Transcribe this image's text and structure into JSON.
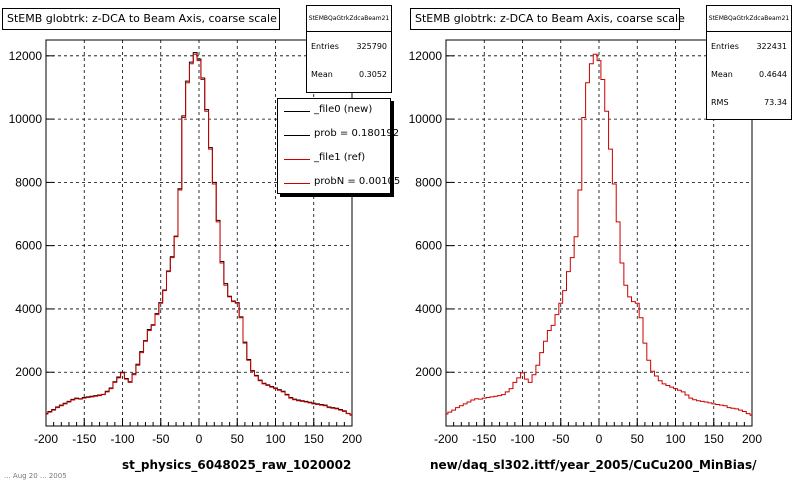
{
  "panels": [
    {
      "title": "StEMB globtrk: z-DCA to Beam Axis, coarse scale",
      "stats": {
        "name": "StEMBQaGtrkZdcaBeam21",
        "rows": [
          {
            "label": "Entries",
            "value": "325790"
          },
          {
            "label": "Mean",
            "value": "0.3052"
          }
        ]
      },
      "legend": [
        {
          "label": "_file0 (new)",
          "color": "#000000"
        },
        {
          "label": "prob = 0.180192",
          "color": "#000000"
        },
        {
          "label": "_file1 (ref)",
          "color": "#cc0000"
        },
        {
          "label": "probN = 0.00105",
          "color": "#cc0000"
        }
      ],
      "footer": "st_physics_6048025_raw_1020002"
    },
    {
      "title": "StEMB globtrk: z-DCA to Beam Axis, coarse scale",
      "stats": {
        "name": "StEMBQaGtrkZdcaBeam21",
        "rows": [
          {
            "label": "Entries",
            "value": "322431"
          },
          {
            "label": "Mean",
            "value": "0.4644"
          },
          {
            "label": "RMS",
            "value": "73.34"
          }
        ]
      },
      "footer": "new/daq_sl302.ittf/year_2005/CuCu200_MinBias/"
    }
  ],
  "cut_text": "... Aug 20 ... 2005",
  "chart_data": [
    {
      "type": "line",
      "style": "histogram-step",
      "title": "StEMB globtrk: z-DCA to Beam Axis, coarse scale",
      "xlabel": "st_physics_6048025_raw_1020002",
      "ylabel": "",
      "xlim": [
        -200,
        200
      ],
      "ylim": [
        300,
        12500
      ],
      "xticks": [
        -200,
        -150,
        -100,
        -50,
        0,
        50,
        100,
        150,
        200
      ],
      "yticks": [
        2000,
        4000,
        6000,
        8000,
        10000,
        12000
      ],
      "grid": true,
      "legend_position": "top-right",
      "series": [
        {
          "name": "_file0 (new)",
          "color": "#000000",
          "x": [
            -200,
            -195,
            -190,
            -185,
            -180,
            -175,
            -170,
            -165,
            -160,
            -155,
            -150,
            -145,
            -140,
            -135,
            -130,
            -125,
            -120,
            -115,
            -110,
            -105,
            -100,
            -95,
            -90,
            -85,
            -80,
            -75,
            -70,
            -65,
            -60,
            -55,
            -50,
            -45,
            -40,
            -35,
            -30,
            -25,
            -20,
            -15,
            -10,
            -5,
            0,
            5,
            10,
            15,
            20,
            25,
            30,
            35,
            40,
            45,
            50,
            55,
            60,
            65,
            70,
            75,
            80,
            85,
            90,
            95,
            100,
            105,
            110,
            115,
            120,
            125,
            130,
            135,
            140,
            145,
            150,
            155,
            160,
            165,
            170,
            175,
            180,
            185,
            190,
            195,
            200
          ],
          "y": [
            700,
            760,
            820,
            900,
            960,
            1020,
            1080,
            1140,
            1180,
            1160,
            1200,
            1220,
            1240,
            1260,
            1280,
            1300,
            1400,
            1500,
            1700,
            1850,
            2000,
            1800,
            1700,
            1950,
            2250,
            2650,
            3000,
            3350,
            3500,
            3850,
            4200,
            4600,
            5200,
            5650,
            6300,
            7800,
            10100,
            11200,
            11800,
            12100,
            11900,
            11300,
            10300,
            9100,
            8000,
            6800,
            5500,
            4800,
            4400,
            4250,
            4200,
            3750,
            2950,
            2400,
            2050,
            1900,
            1750,
            1650,
            1600,
            1550,
            1500,
            1450,
            1400,
            1300,
            1200,
            1150,
            1120,
            1100,
            1080,
            1050,
            1020,
            1000,
            980,
            960,
            900,
            880,
            860,
            820,
            780,
            700,
            650
          ]
        },
        {
          "name": "_file1 (ref)",
          "color": "#cc0000",
          "x": [
            -200,
            -195,
            -190,
            -185,
            -180,
            -175,
            -170,
            -165,
            -160,
            -155,
            -150,
            -145,
            -140,
            -135,
            -130,
            -125,
            -120,
            -115,
            -110,
            -105,
            -100,
            -95,
            -90,
            -85,
            -80,
            -75,
            -70,
            -65,
            -60,
            -55,
            -50,
            -45,
            -40,
            -35,
            -30,
            -25,
            -20,
            -15,
            -10,
            -5,
            0,
            5,
            10,
            15,
            20,
            25,
            30,
            35,
            40,
            45,
            50,
            55,
            60,
            65,
            70,
            75,
            80,
            85,
            90,
            95,
            100,
            105,
            110,
            115,
            120,
            125,
            130,
            135,
            140,
            145,
            150,
            155,
            160,
            165,
            170,
            175,
            180,
            185,
            190,
            195,
            200
          ],
          "y": [
            680,
            740,
            800,
            880,
            940,
            1000,
            1060,
            1120,
            1160,
            1150,
            1180,
            1200,
            1220,
            1240,
            1260,
            1290,
            1380,
            1480,
            1680,
            1820,
            1980,
            1780,
            1680,
            1920,
            2220,
            2620,
            2980,
            3320,
            3480,
            3820,
            4180,
            4580,
            5180,
            5620,
            6280,
            7760,
            10050,
            11150,
            11750,
            12050,
            11850,
            11250,
            10250,
            9050,
            7950,
            6750,
            5450,
            4750,
            4380,
            4230,
            4180,
            3720,
            2920,
            2380,
            2030,
            1880,
            1730,
            1630,
            1580,
            1530,
            1480,
            1430,
            1380,
            1280,
            1180,
            1130,
            1100,
            1080,
            1060,
            1030,
            1000,
            980,
            960,
            940,
            880,
            860,
            840,
            800,
            760,
            690,
            640
          ]
        }
      ]
    },
    {
      "type": "line",
      "style": "histogram-step",
      "title": "StEMB globtrk: z-DCA to Beam Axis, coarse scale",
      "xlabel": "new/daq_sl302.ittf/year_2005/CuCu200_MinBias/",
      "ylabel": "",
      "xlim": [
        -200,
        200
      ],
      "ylim": [
        300,
        12500
      ],
      "xticks": [
        -200,
        -150,
        -100,
        -50,
        0,
        50,
        100,
        150,
        200
      ],
      "yticks": [
        2000,
        4000,
        6000,
        8000,
        10000,
        12000
      ],
      "grid": true,
      "series": [
        {
          "name": "",
          "color": "#cc0000",
          "x": [
            -200,
            -195,
            -190,
            -185,
            -180,
            -175,
            -170,
            -165,
            -160,
            -155,
            -150,
            -145,
            -140,
            -135,
            -130,
            -125,
            -120,
            -115,
            -110,
            -105,
            -100,
            -95,
            -90,
            -85,
            -80,
            -75,
            -70,
            -65,
            -60,
            -55,
            -50,
            -45,
            -40,
            -35,
            -30,
            -25,
            -20,
            -15,
            -10,
            -5,
            0,
            5,
            10,
            15,
            20,
            25,
            30,
            35,
            40,
            45,
            50,
            55,
            60,
            65,
            70,
            75,
            80,
            85,
            90,
            95,
            100,
            105,
            110,
            115,
            120,
            125,
            130,
            135,
            140,
            145,
            150,
            155,
            160,
            165,
            170,
            175,
            180,
            185,
            190,
            195,
            200
          ],
          "y": [
            680,
            740,
            800,
            880,
            940,
            1000,
            1060,
            1120,
            1160,
            1150,
            1180,
            1200,
            1220,
            1240,
            1260,
            1290,
            1380,
            1480,
            1680,
            1820,
            1980,
            1780,
            1680,
            1920,
            2220,
            2620,
            2980,
            3320,
            3480,
            3820,
            4180,
            4580,
            5180,
            5620,
            6280,
            7760,
            10050,
            11150,
            11750,
            12050,
            11850,
            11250,
            10250,
            9050,
            7950,
            6750,
            5450,
            4750,
            4380,
            4230,
            4180,
            3720,
            2920,
            2380,
            2030,
            1880,
            1730,
            1630,
            1580,
            1530,
            1480,
            1430,
            1380,
            1280,
            1180,
            1130,
            1100,
            1080,
            1060,
            1030,
            1000,
            980,
            960,
            940,
            880,
            860,
            840,
            800,
            760,
            690,
            640
          ]
        }
      ]
    }
  ]
}
